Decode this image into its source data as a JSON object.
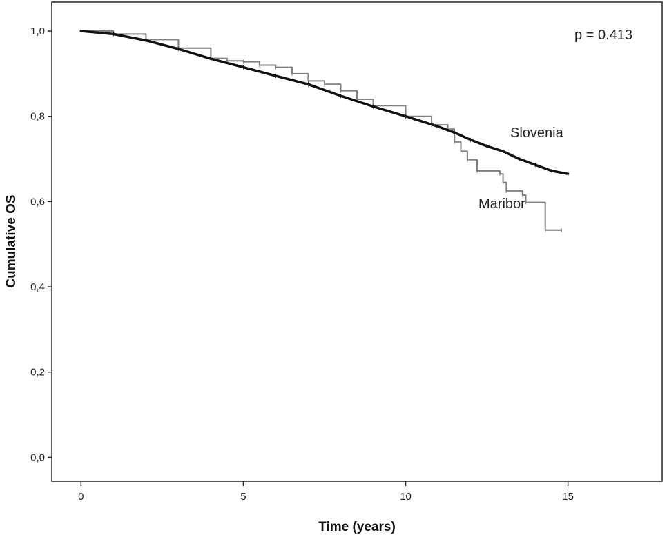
{
  "chart_data": {
    "type": "line",
    "xlabel": "Time (years)",
    "ylabel": "Cumulative OS",
    "xlim": [
      -0.9,
      17.9
    ],
    "ylim": [
      -0.056,
      1.068
    ],
    "x_ticks": [
      "0",
      "5",
      "10",
      "15"
    ],
    "y_ticks": [
      "0,0",
      "0,2",
      "0,4",
      "0,6",
      "0,8",
      "1,0"
    ],
    "annotation": "p = 0.413",
    "grid": false,
    "series": [
      {
        "name": "Slovenia",
        "color": "#111111",
        "step": false,
        "points": [
          [
            0,
            1.0
          ],
          [
            1,
            0.993
          ],
          [
            2,
            0.978
          ],
          [
            3,
            0.958
          ],
          [
            4,
            0.935
          ],
          [
            5,
            0.915
          ],
          [
            6,
            0.895
          ],
          [
            7,
            0.875
          ],
          [
            8,
            0.848
          ],
          [
            9,
            0.823
          ],
          [
            10,
            0.8
          ],
          [
            11,
            0.776
          ],
          [
            11.5,
            0.762
          ],
          [
            12,
            0.745
          ],
          [
            12.5,
            0.73
          ],
          [
            13,
            0.718
          ],
          [
            13.5,
            0.7
          ],
          [
            14,
            0.686
          ],
          [
            14.5,
            0.672
          ],
          [
            15,
            0.665
          ]
        ]
      },
      {
        "name": "Maribor",
        "color": "#808080",
        "step": true,
        "points": [
          [
            0,
            1.0
          ],
          [
            1,
            0.993
          ],
          [
            2,
            0.98
          ],
          [
            3,
            0.96
          ],
          [
            4,
            0.936
          ],
          [
            4.5,
            0.93
          ],
          [
            5,
            0.928
          ],
          [
            5.5,
            0.92
          ],
          [
            6,
            0.915
          ],
          [
            6.5,
            0.9
          ],
          [
            7,
            0.883
          ],
          [
            7.5,
            0.875
          ],
          [
            8,
            0.86
          ],
          [
            8.5,
            0.84
          ],
          [
            9,
            0.825
          ],
          [
            10,
            0.8
          ],
          [
            10.8,
            0.78
          ],
          [
            11.3,
            0.77
          ],
          [
            11.5,
            0.74
          ],
          [
            11.7,
            0.718
          ],
          [
            11.9,
            0.698
          ],
          [
            12.2,
            0.672
          ],
          [
            12.9,
            0.665
          ],
          [
            13.0,
            0.645
          ],
          [
            13.1,
            0.625
          ],
          [
            13.6,
            0.615
          ],
          [
            13.7,
            0.598
          ],
          [
            14.3,
            0.533
          ],
          [
            14.8,
            0.533
          ]
        ]
      }
    ]
  }
}
